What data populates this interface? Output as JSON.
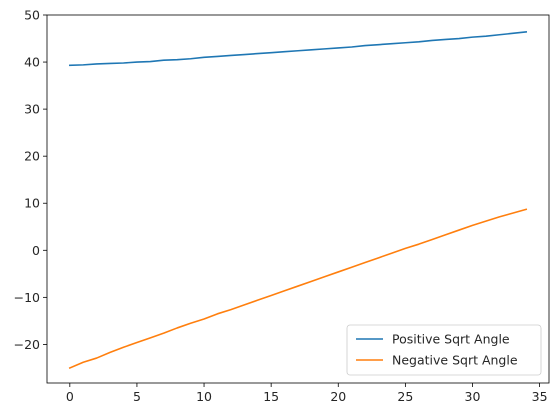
{
  "chart_data": {
    "type": "line",
    "title": "",
    "xlabel": "",
    "ylabel": "",
    "xlim": [
      -1.7,
      35.7
    ],
    "ylim": [
      -28.2,
      50
    ],
    "x_ticks": [
      0,
      5,
      10,
      15,
      20,
      25,
      30,
      35
    ],
    "y_ticks": [
      -20,
      -10,
      0,
      10,
      20,
      30,
      40,
      50
    ],
    "grid": false,
    "legend_position": "lower-right",
    "x": [
      0,
      1,
      2,
      3,
      4,
      5,
      6,
      7,
      8,
      9,
      10,
      11,
      12,
      13,
      14,
      15,
      16,
      17,
      18,
      19,
      20,
      21,
      22,
      23,
      24,
      25,
      26,
      27,
      28,
      29,
      30,
      31,
      32,
      33,
      34
    ],
    "series": [
      {
        "name": "Positive Sqrt Angle",
        "color": "#1f77b4",
        "values": [
          39.3,
          39.4,
          39.6,
          39.7,
          39.8,
          40.0,
          40.1,
          40.4,
          40.5,
          40.7,
          41.0,
          41.2,
          41.4,
          41.6,
          41.8,
          42.0,
          42.2,
          42.4,
          42.6,
          42.8,
          43.0,
          43.2,
          43.5,
          43.7,
          43.9,
          44.1,
          44.3,
          44.6,
          44.8,
          45.0,
          45.3,
          45.5,
          45.8,
          46.1,
          46.4
        ]
      },
      {
        "name": "Negative Sqrt Angle",
        "color": "#ff7f0e",
        "values": [
          -25.0,
          -23.8,
          -22.9,
          -21.7,
          -20.6,
          -19.6,
          -18.6,
          -17.6,
          -16.5,
          -15.5,
          -14.6,
          -13.5,
          -12.6,
          -11.6,
          -10.6,
          -9.6,
          -8.6,
          -7.6,
          -6.6,
          -5.6,
          -4.6,
          -3.6,
          -2.6,
          -1.6,
          -0.6,
          0.4,
          1.3,
          2.3,
          3.3,
          4.3,
          5.3,
          6.2,
          7.1,
          7.9,
          8.7
        ]
      }
    ]
  }
}
